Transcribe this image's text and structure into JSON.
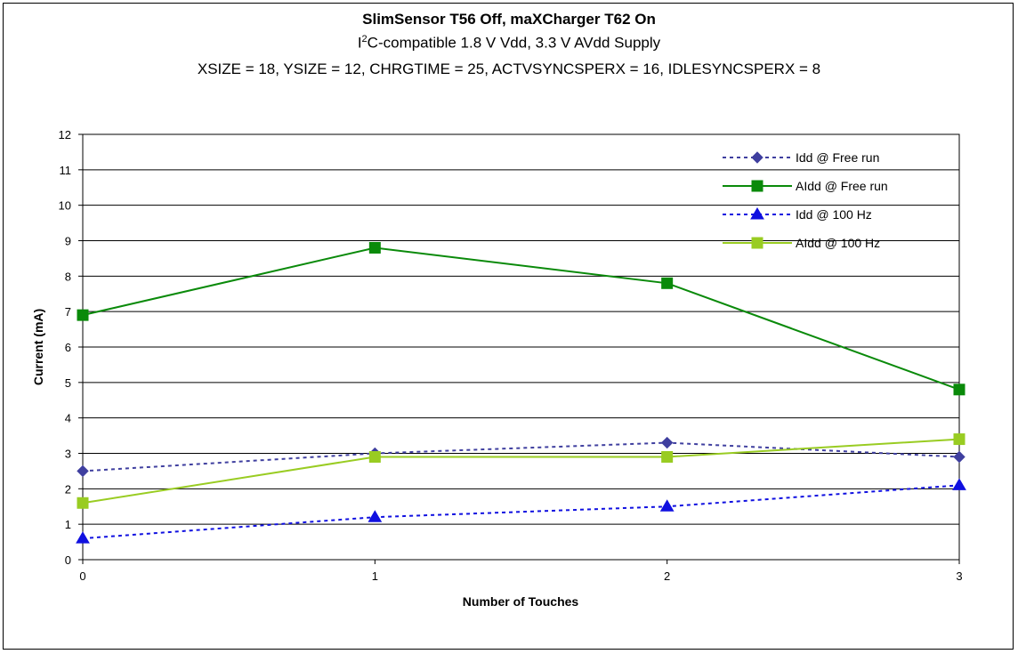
{
  "chart_data": {
    "type": "line",
    "title": "SlimSensor T56 Off, maXCharger T62 On",
    "subtitle": {
      "prefix": "I",
      "superscript": "2",
      "rest": "C-compatible 1.8 V Vdd, 3.3 V AVdd Supply"
    },
    "subtitle2": "XSIZE = 18, YSIZE = 12, CHRGTIME = 25, ACTVSYNCSPERX = 16, IDLESYNCSPERX = 8",
    "xlabel": "Number of Touches",
    "ylabel": "Current (mA)",
    "x": [
      0,
      1,
      2,
      3
    ],
    "x_tick_labels": [
      "0",
      "1",
      "2",
      "3"
    ],
    "y_tick_labels": [
      "0",
      "1",
      "2",
      "3",
      "4",
      "5",
      "6",
      "7",
      "8",
      "9",
      "10",
      "11",
      "12"
    ],
    "ylim": [
      0,
      12
    ],
    "grid": "horizontal",
    "legend_position": "top-right",
    "series": [
      {
        "name": "Idd @ Free run",
        "values": [
          2.5,
          3.0,
          3.3,
          2.9
        ],
        "color": "#3f3f9f",
        "dash": "dotted",
        "marker": "diamond"
      },
      {
        "name": "AIdd @ Free run",
        "values": [
          6.9,
          8.8,
          7.8,
          4.8
        ],
        "color": "#0a8a0a",
        "dash": "solid",
        "marker": "square"
      },
      {
        "name": "Idd @ 100 Hz",
        "values": [
          0.6,
          1.2,
          1.5,
          2.1
        ],
        "color": "#1010e0",
        "dash": "dotted",
        "marker": "triangle"
      },
      {
        "name": "AIdd @ 100 Hz",
        "values": [
          1.6,
          2.9,
          2.9,
          3.4
        ],
        "color": "#99cc22",
        "dash": "solid",
        "marker": "square"
      }
    ]
  }
}
